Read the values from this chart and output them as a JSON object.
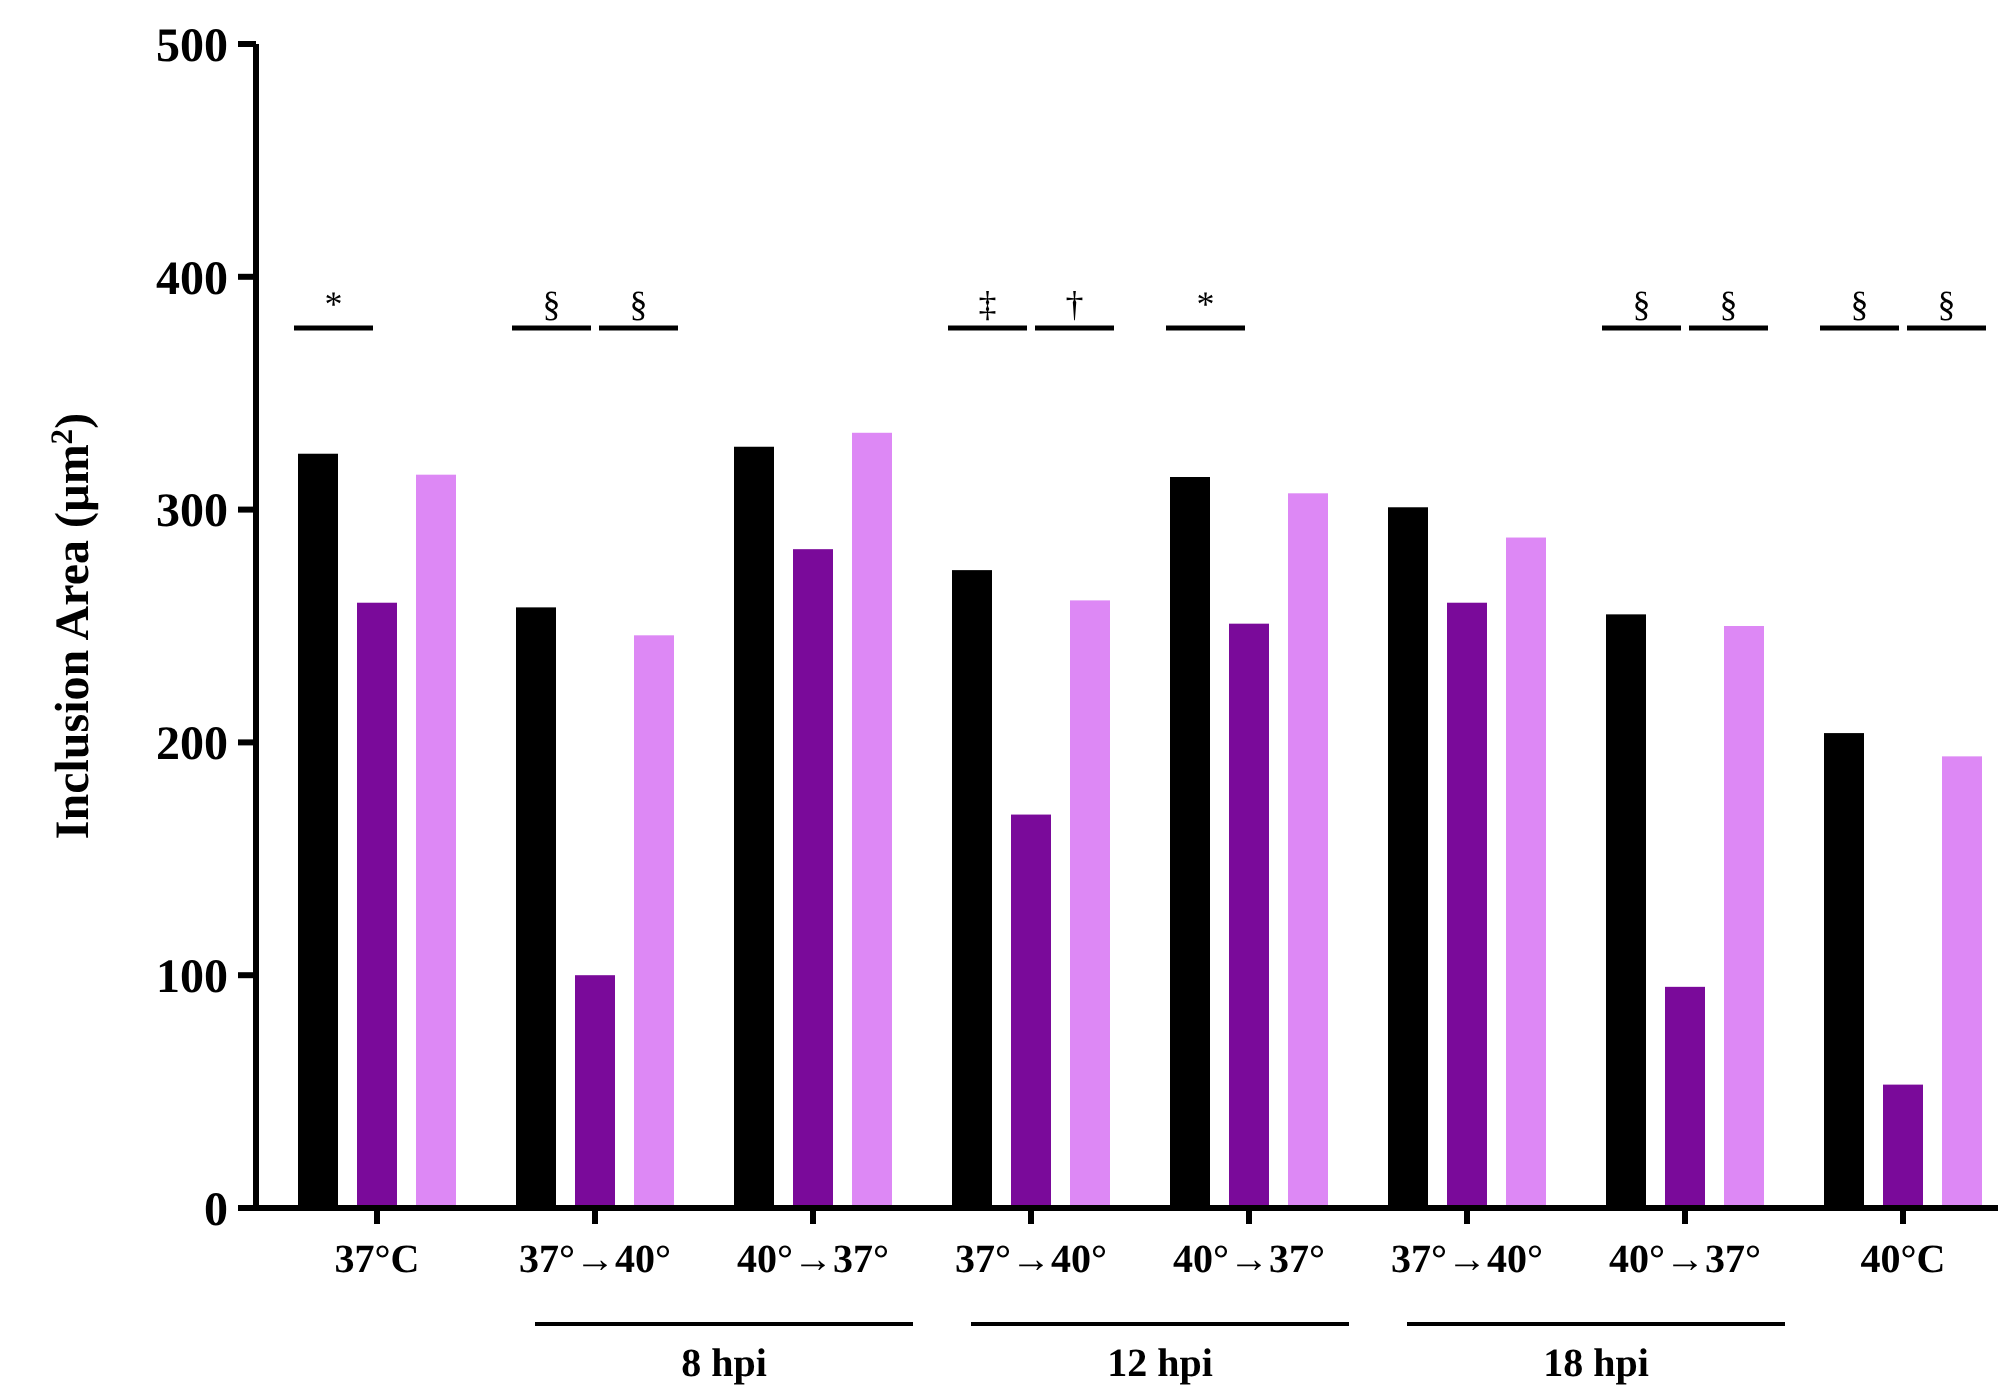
{
  "chart_data": {
    "type": "bar",
    "ylabel": "Inclusion Area (µm$^{2}$)",
    "categories": [
      "37°C",
      "37°→40°",
      "40°→37°",
      "37°→40°",
      "40°→37°",
      "37°→40°",
      "40°→37°",
      "40°C"
    ],
    "series": [
      {
        "color": "#000000",
        "values": [
          324,
          258,
          327,
          274,
          314,
          301,
          255,
          204
        ]
      },
      {
        "color": "#7a0a9a",
        "values": [
          260,
          100,
          283,
          169,
          251,
          260,
          95,
          53
        ]
      },
      {
        "color": "#dd88f5",
        "values": [
          315,
          246,
          333,
          261,
          307,
          288,
          250,
          194
        ]
      }
    ],
    "ylim": [
      0,
      500
    ],
    "yticks": [
      0,
      100,
      200,
      300,
      400,
      500
    ],
    "annotations": [
      "*",
      "§",
      "§",
      "‡",
      "†",
      "*",
      "§",
      "§",
      "§",
      "§",
      "8 hpi",
      "12 hpi",
      "18 hpi"
    ]
  }
}
